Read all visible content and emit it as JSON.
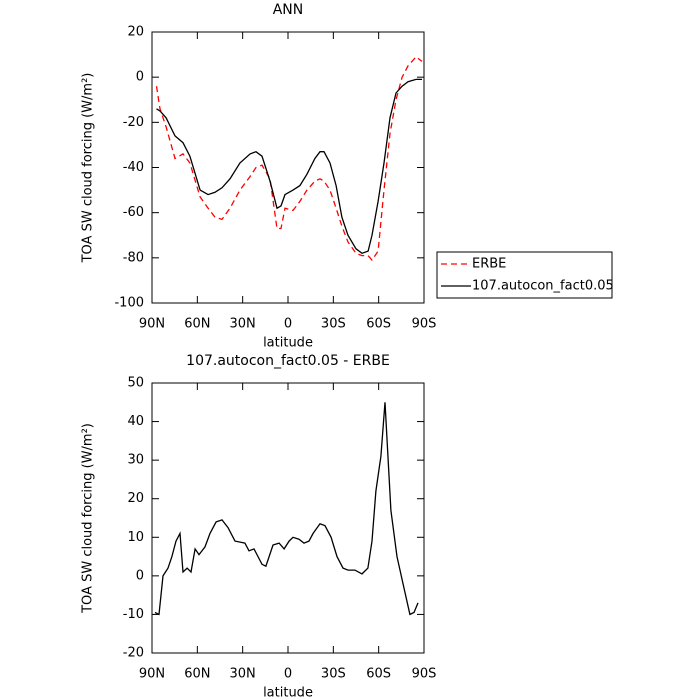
{
  "chart_data": [
    {
      "type": "line",
      "title": "ANN",
      "xlabel": "latitude",
      "ylabel": "TOA SW cloud forcing (W/m²)",
      "xlim": [
        90,
        -90
      ],
      "xticks": [
        {
          "value": 90,
          "label": "90N"
        },
        {
          "value": 60,
          "label": "60N"
        },
        {
          "value": 30,
          "label": "30N"
        },
        0,
        {
          "value": -30,
          "label": "30S"
        },
        {
          "value": -60,
          "label": "60S"
        },
        {
          "value": -90,
          "label": "90S"
        }
      ],
      "ylim": [
        -100,
        20
      ],
      "yticks": [
        -100,
        -80,
        -60,
        -40,
        -20,
        0,
        20
      ],
      "legend": "right",
      "x": [
        87,
        84.7,
        80.7,
        74.8,
        69.5,
        64.9,
        58.2,
        52.9,
        48.3,
        43.7,
        38.4,
        31.8,
        25.1,
        21.2,
        17.2,
        11.9,
        7.3,
        4.6,
        2,
        -3.3,
        -7.9,
        -12.5,
        -17.8,
        -21.2,
        -23.8,
        -27.8,
        -31.8,
        -35.7,
        -39.7,
        -45,
        -49,
        -53,
        -55.6,
        -59.6,
        -63.5,
        -67.5,
        -71.5,
        -75.5,
        -79.4,
        -84.7,
        -88.7
      ],
      "series": [
        {
          "name": "ERBE",
          "color": "#ff0000",
          "linestyle": "dashed",
          "values": [
            -4,
            -14,
            -22,
            -36,
            -34,
            -38,
            -53,
            -58,
            -62,
            -63,
            -58,
            -50,
            -44,
            -40,
            -39,
            -45,
            -67,
            -67,
            -58,
            -59,
            -55,
            -50,
            -46,
            -45,
            -46,
            -50,
            -58,
            -66,
            -73,
            -78,
            -79,
            -79,
            -81,
            -77,
            -50,
            -25,
            -10,
            0,
            5,
            9,
            7
          ]
        },
        {
          "name": "107.autocon_fact0.05",
          "color": "#000000",
          "linestyle": "solid",
          "values": [
            -14,
            -15,
            -18,
            -26,
            -29,
            -35,
            -50,
            -52,
            -51,
            -49,
            -45,
            -38,
            -34,
            -33,
            -35,
            -46,
            -58,
            -57,
            -52,
            -50,
            -48,
            -43,
            -36,
            -33,
            -33,
            -38,
            -48,
            -62,
            -70,
            -76,
            -78,
            -77,
            -70,
            -55,
            -38,
            -18,
            -7,
            -4,
            -2,
            -1,
            -1
          ]
        }
      ]
    },
    {
      "type": "line",
      "title": "107.autocon_fact0.05 - ERBE",
      "xlabel": "latitude",
      "ylabel": "TOA SW cloud forcing (W/m²)",
      "xlim": [
        90,
        -90
      ],
      "xticks": [
        {
          "value": 90,
          "label": "90N"
        },
        {
          "value": 60,
          "label": "60N"
        },
        {
          "value": 30,
          "label": "30N"
        },
        0,
        {
          "value": -30,
          "label": "30S"
        },
        {
          "value": -60,
          "label": "60S"
        },
        {
          "value": -90,
          "label": "90S"
        }
      ],
      "ylim": [
        -20,
        50
      ],
      "yticks": [
        -20,
        -10,
        0,
        10,
        20,
        30,
        40,
        50
      ],
      "x": [
        88,
        85.4,
        82.7,
        79.4,
        76.8,
        74.1,
        71.5,
        69.5,
        66.8,
        64.2,
        61.5,
        58.9,
        54.9,
        51.6,
        47.6,
        43.7,
        39.7,
        35.1,
        28.5,
        25.8,
        22.5,
        17.2,
        14.6,
        9.9,
        5.9,
        2.6,
        -0.7,
        -3.3,
        -7.3,
        -10.6,
        -13.9,
        -16.6,
        -21.2,
        -24.5,
        -28.5,
        -32.4,
        -36.4,
        -39.7,
        -44.3,
        -49,
        -52.9,
        -55.6,
        -58.2,
        -61.5,
        -64.2,
        -68.1,
        -72.1,
        -76.1,
        -80.7,
        -83.4,
        -86
      ],
      "series": [
        {
          "color": "#000000",
          "linestyle": "solid",
          "values": [
            -9.5,
            -10,
            0,
            2,
            5,
            9,
            11,
            1,
            2,
            1,
            7,
            5.5,
            7.5,
            11,
            14,
            14.5,
            12.5,
            9,
            8.5,
            6.5,
            7,
            3,
            2.5,
            8,
            8.5,
            7,
            9,
            10,
            9.5,
            8.5,
            9,
            11,
            13.5,
            13,
            10,
            5,
            2,
            1.5,
            1.5,
            0.5,
            2,
            9,
            22,
            31,
            45,
            17,
            5,
            -2,
            -10,
            -9.5,
            -7
          ]
        }
      ]
    }
  ]
}
